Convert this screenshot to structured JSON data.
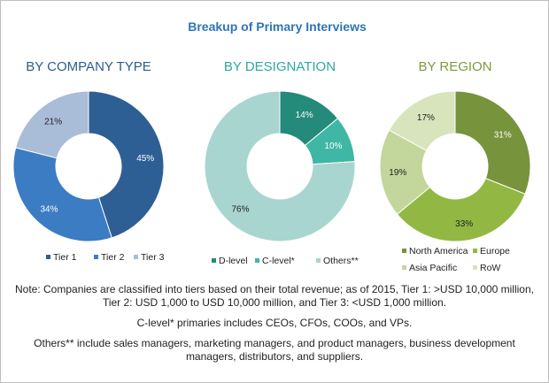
{
  "title": "Breakup of Primary Interviews",
  "colors": {
    "title": "#2e75b6",
    "ring_text_dark": "#222222",
    "ring_text_light": "#ffffff"
  },
  "chart_data": [
    {
      "type": "pie",
      "title": "BY COMPANY TYPE",
      "title_color": "#2b5d8e",
      "categories": [
        "Tier 1",
        "Tier 2",
        "Tier 3"
      ],
      "values": [
        45,
        34,
        21
      ],
      "labels": [
        "45%",
        "34%",
        "21%"
      ],
      "colors": [
        "#2e5f94",
        "#3b7cc3",
        "#a9bcd8"
      ],
      "legend": "bottom"
    },
    {
      "type": "pie",
      "title": "BY DESIGNATION",
      "title_color": "#2ea99b",
      "categories": [
        "D-level",
        "C-level*",
        "Others**"
      ],
      "values": [
        14,
        10,
        76
      ],
      "labels": [
        "14%",
        "10%",
        "76%"
      ],
      "colors": [
        "#248a7a",
        "#3fb7a4",
        "#a8d5cf"
      ],
      "legend": "bottom"
    },
    {
      "type": "pie",
      "title": "BY REGION",
      "title_color": "#7d9a3e",
      "categories": [
        "North America",
        "Europe",
        "Asia Pacific",
        "RoW"
      ],
      "values": [
        31,
        33,
        19,
        17
      ],
      "labels": [
        "31%",
        "33%",
        "19%",
        "17%"
      ],
      "colors": [
        "#77933c",
        "#92b843",
        "#c3d69b",
        "#d8e4bc"
      ],
      "legend": "bottom"
    }
  ],
  "notes": {
    "tiers": "Note: Companies are classified into tiers based on their total revenue; as of 2015, Tier 1: >USD 10,000 million, Tier 2: USD 1,000 to USD 10,000 million, and Tier 3: <USD 1,000 million.",
    "clevel": "C-level* primaries includes CEOs, CFOs, COOs, and VPs.",
    "others": "Others** include sales managers, marketing managers, and product managers, business development managers, distributors, and suppliers."
  }
}
